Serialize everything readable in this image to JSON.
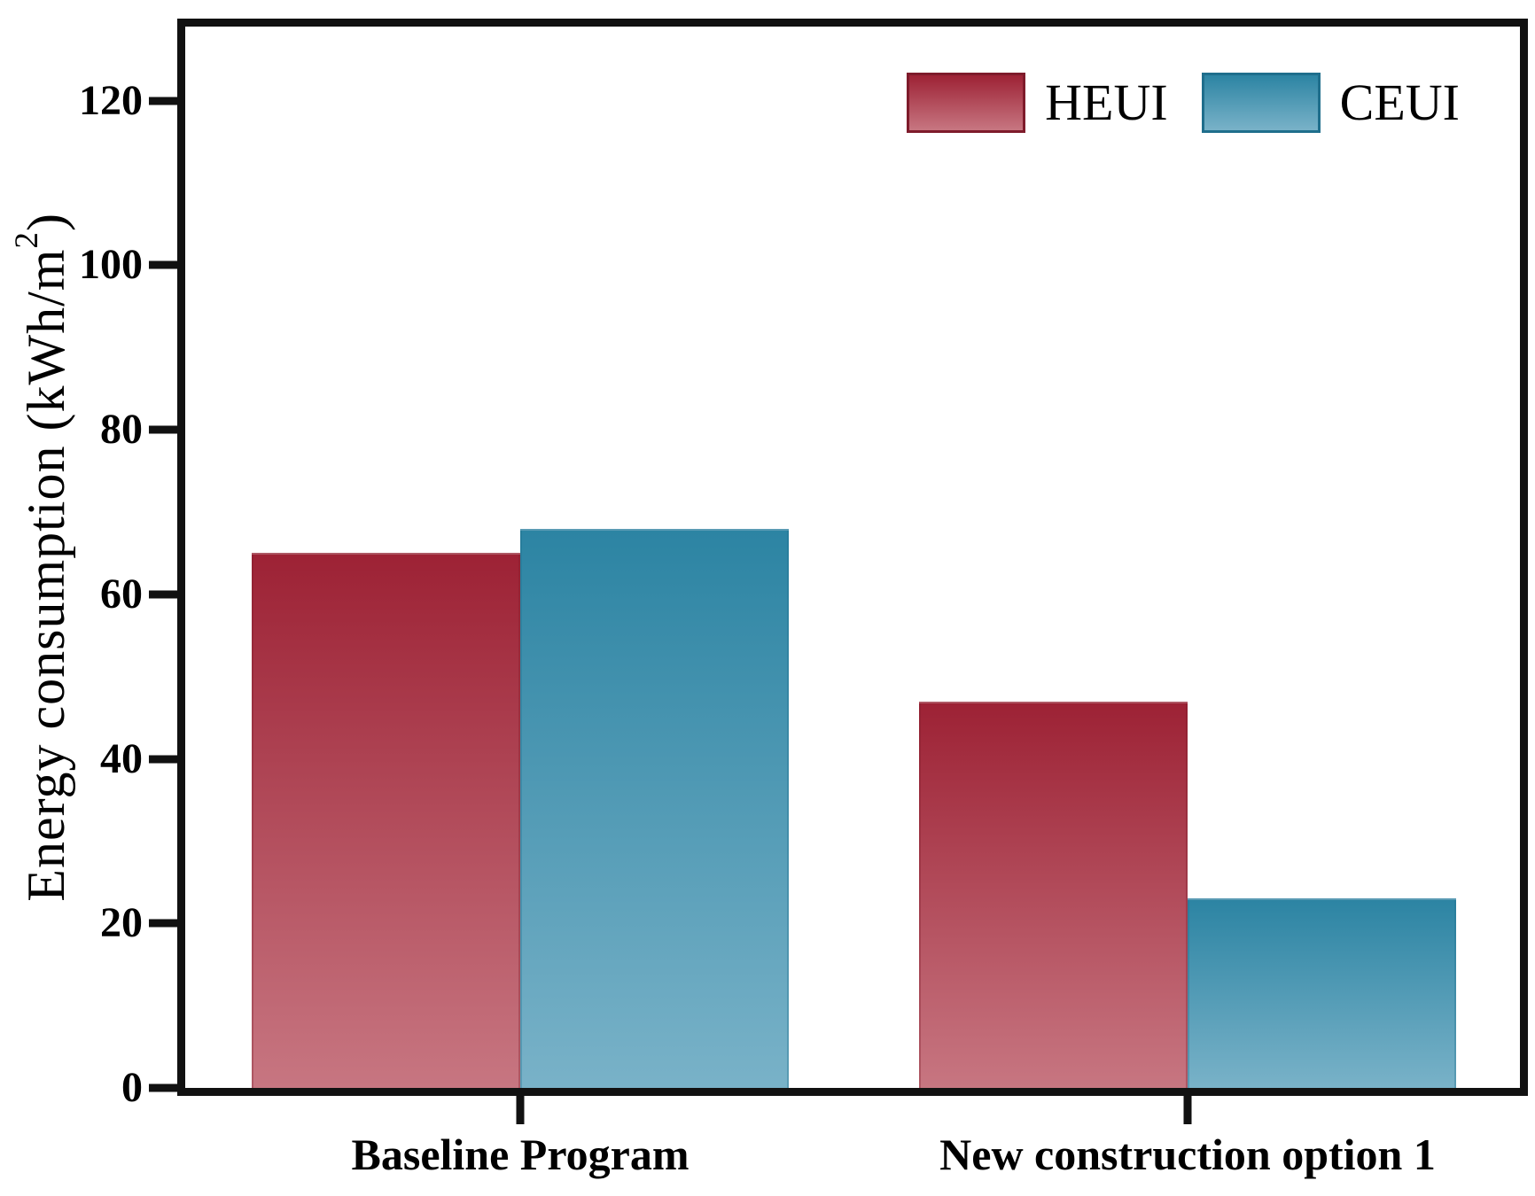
{
  "figure": {
    "background": "#ffffff",
    "frame_color": "#111111",
    "tick_color": "#111111",
    "text_color": "#000000"
  },
  "chart_data": {
    "type": "bar",
    "title": "",
    "categories": [
      "Baseline Program",
      "New construction option 1"
    ],
    "series": [
      {
        "name": "HEUI",
        "values": [
          65,
          47
        ],
        "color_top": "#9d2235",
        "color_bottom": "#c77681",
        "edge_color": "#7e1b2b"
      },
      {
        "name": "CEUI",
        "values": [
          68,
          23
        ],
        "color_top": "#2c84a3",
        "color_bottom": "#79b2c8",
        "edge_color": "#1f6e8c"
      }
    ],
    "xlabel": "",
    "ylabel": "Energy consumption (kWh/m²)",
    "ylabel_prefix": "Energy consumption (kWh/m",
    "ylabel_sup": "2",
    "ylabel_suffix": ")",
    "yticks": [
      0,
      20,
      40,
      60,
      80,
      100,
      120
    ],
    "ylim": [
      0,
      129
    ],
    "grid": false,
    "legend_position": "top-right",
    "layout": {
      "category_centers_pct": [
        25.1,
        75.1
      ],
      "bar_width_pct": 20.1
    }
  }
}
